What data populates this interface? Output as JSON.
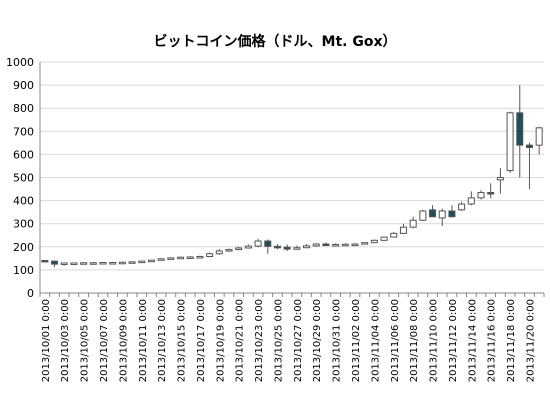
{
  "chart_data": {
    "type": "candlestick",
    "title": "ビットコイン価格（ドル、Mt. Gox）",
    "xlabel": "",
    "ylabel": "",
    "ylim": [
      0,
      1000
    ],
    "yticks": [
      0,
      100,
      200,
      300,
      400,
      500,
      600,
      700,
      800,
      900,
      1000
    ],
    "grid": true,
    "legend": "none",
    "colors": {
      "up": "#ffffff",
      "down": "#1f4e5f",
      "stroke": "#555555",
      "grid": "#d9d9d9"
    },
    "x_tick_labels": [
      "2013/10/01 0:00",
      "2013/10/03 0:00",
      "2013/10/05 0:00",
      "2013/10/07 0:00",
      "2013/10/09 0:00",
      "2013/10/11 0:00",
      "2013/10/13 0:00",
      "2013/10/15 0:00",
      "2013/10/17 0:00",
      "2013/10/19 0:00",
      "2013/10/21 0:00",
      "2013/10/23 0:00",
      "2013/10/25 0:00",
      "2013/10/27 0:00",
      "2013/10/29 0:00",
      "2013/10/31 0:00",
      "2013/11/02 0:00",
      "2013/11/04 0:00",
      "2013/11/06 0:00",
      "2013/11/08 0:00",
      "2013/11/10 0:00",
      "2013/11/12 0:00",
      "2013/11/14 0:00",
      "2013/11/16 0:00",
      "2013/11/18 0:00",
      "2013/11/20 0:00"
    ],
    "dates": [
      "2013/10/01",
      "2013/10/02",
      "2013/10/03",
      "2013/10/04",
      "2013/10/05",
      "2013/10/06",
      "2013/10/07",
      "2013/10/08",
      "2013/10/09",
      "2013/10/10",
      "2013/10/11",
      "2013/10/12",
      "2013/10/13",
      "2013/10/14",
      "2013/10/15",
      "2013/10/16",
      "2013/10/17",
      "2013/10/18",
      "2013/10/19",
      "2013/10/20",
      "2013/10/21",
      "2013/10/22",
      "2013/10/23",
      "2013/10/24",
      "2013/10/25",
      "2013/10/26",
      "2013/10/27",
      "2013/10/28",
      "2013/10/29",
      "2013/10/30",
      "2013/10/31",
      "2013/11/01",
      "2013/11/02",
      "2013/11/03",
      "2013/11/04",
      "2013/11/05",
      "2013/11/06",
      "2013/11/07",
      "2013/11/08",
      "2013/11/09",
      "2013/11/10",
      "2013/11/11",
      "2013/11/12",
      "2013/11/13",
      "2013/11/14",
      "2013/11/15",
      "2013/11/16",
      "2013/11/17",
      "2013/11/18",
      "2013/11/19",
      "2013/11/20",
      "2013/11/21"
    ],
    "open": [
      141,
      138,
      125,
      128,
      130,
      131,
      131,
      132,
      132,
      133,
      135,
      138,
      142,
      148,
      152,
      155,
      156,
      158,
      170,
      182,
      188,
      195,
      203,
      225,
      202,
      198,
      190,
      196,
      204,
      212,
      208,
      210,
      211,
      212,
      218,
      228,
      242,
      258,
      285,
      315,
      360,
      325,
      355,
      360,
      385,
      412,
      435,
      490,
      530,
      780,
      640,
      640
    ],
    "high": [
      142,
      140,
      132,
      132,
      133,
      134,
      134,
      135,
      136,
      138,
      140,
      144,
      150,
      155,
      158,
      160,
      162,
      175,
      190,
      192,
      200,
      210,
      235,
      232,
      212,
      210,
      205,
      212,
      216,
      218,
      215,
      216,
      216,
      220,
      232,
      245,
      265,
      300,
      330,
      360,
      380,
      365,
      380,
      395,
      440,
      445,
      475,
      540,
      785,
      900,
      650,
      720
    ],
    "low": [
      136,
      112,
      118,
      125,
      126,
      128,
      129,
      130,
      130,
      131,
      133,
      136,
      140,
      146,
      149,
      152,
      153,
      155,
      165,
      178,
      185,
      192,
      198,
      170,
      190,
      182,
      188,
      194,
      200,
      205,
      205,
      207,
      208,
      210,
      216,
      226,
      240,
      255,
      280,
      312,
      330,
      290,
      330,
      355,
      380,
      405,
      410,
      430,
      520,
      500,
      450,
      600
    ],
    "close": [
      138,
      125,
      130,
      130,
      131,
      131,
      132,
      132,
      133,
      135,
      138,
      142,
      148,
      152,
      155,
      156,
      158,
      170,
      182,
      188,
      195,
      203,
      225,
      202,
      198,
      190,
      196,
      204,
      212,
      208,
      210,
      211,
      212,
      218,
      228,
      242,
      258,
      285,
      315,
      355,
      330,
      355,
      330,
      385,
      412,
      435,
      430,
      500,
      780,
      640,
      630,
      715
    ]
  }
}
